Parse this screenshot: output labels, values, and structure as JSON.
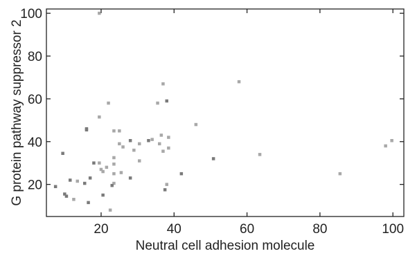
{
  "chart_data": {
    "type": "scatter",
    "xlabel": "Neutral cell adhesion molecule",
    "ylabel": "G protein pathway suppressor 2",
    "xlim": [
      5,
      103
    ],
    "ylim": [
      5,
      102
    ],
    "x_ticks": [
      20,
      40,
      60,
      80,
      100
    ],
    "y_ticks": [
      20,
      40,
      60,
      80,
      100
    ],
    "grid": false,
    "legend": "none",
    "colors": {
      "dark": "#7a7a7a",
      "light": "#a8a8a8",
      "axis": "#222222"
    },
    "points": [
      {
        "x": 19.5,
        "y": 100,
        "shade": "light"
      },
      {
        "x": 57.8,
        "y": 68,
        "shade": "light"
      },
      {
        "x": 37.0,
        "y": 67,
        "shade": "light"
      },
      {
        "x": 38.0,
        "y": 59,
        "shade": "dark"
      },
      {
        "x": 22.0,
        "y": 58,
        "shade": "light"
      },
      {
        "x": 35.5,
        "y": 58,
        "shade": "light"
      },
      {
        "x": 19.5,
        "y": 51.5,
        "shade": "light"
      },
      {
        "x": 46.0,
        "y": 48,
        "shade": "light"
      },
      {
        "x": 16.0,
        "y": 46,
        "shade": "dark"
      },
      {
        "x": 16.0,
        "y": 45.5,
        "shade": "dark"
      },
      {
        "x": 23.5,
        "y": 45,
        "shade": "light"
      },
      {
        "x": 25.0,
        "y": 45,
        "shade": "light"
      },
      {
        "x": 36.5,
        "y": 43,
        "shade": "light"
      },
      {
        "x": 38.5,
        "y": 42,
        "shade": "light"
      },
      {
        "x": 33.0,
        "y": 40.5,
        "shade": "dark"
      },
      {
        "x": 34.0,
        "y": 41,
        "shade": "light"
      },
      {
        "x": 28.0,
        "y": 40.5,
        "shade": "dark"
      },
      {
        "x": 36.0,
        "y": 39,
        "shade": "light"
      },
      {
        "x": 30.5,
        "y": 39,
        "shade": "light"
      },
      {
        "x": 25.0,
        "y": 39,
        "shade": "light"
      },
      {
        "x": 26.0,
        "y": 37.5,
        "shade": "light"
      },
      {
        "x": 38.5,
        "y": 37,
        "shade": "light"
      },
      {
        "x": 99.7,
        "y": 40.5,
        "shade": "light"
      },
      {
        "x": 98.0,
        "y": 38,
        "shade": "light"
      },
      {
        "x": 29.0,
        "y": 36,
        "shade": "light"
      },
      {
        "x": 37.0,
        "y": 35.5,
        "shade": "light"
      },
      {
        "x": 9.5,
        "y": 34.5,
        "shade": "dark"
      },
      {
        "x": 63.5,
        "y": 34,
        "shade": "light"
      },
      {
        "x": 23.5,
        "y": 32.5,
        "shade": "light"
      },
      {
        "x": 50.8,
        "y": 32,
        "shade": "dark"
      },
      {
        "x": 30.5,
        "y": 31,
        "shade": "light"
      },
      {
        "x": 18.0,
        "y": 30,
        "shade": "dark"
      },
      {
        "x": 19.5,
        "y": 30,
        "shade": "light"
      },
      {
        "x": 23.5,
        "y": 29.5,
        "shade": "light"
      },
      {
        "x": 21.5,
        "y": 28,
        "shade": "light"
      },
      {
        "x": 20.0,
        "y": 27,
        "shade": "light"
      },
      {
        "x": 20.5,
        "y": 26,
        "shade": "light"
      },
      {
        "x": 25.5,
        "y": 25.5,
        "shade": "light"
      },
      {
        "x": 23.5,
        "y": 25,
        "shade": "light"
      },
      {
        "x": 85.5,
        "y": 25,
        "shade": "light"
      },
      {
        "x": 42.0,
        "y": 25,
        "shade": "dark"
      },
      {
        "x": 17.0,
        "y": 23,
        "shade": "dark"
      },
      {
        "x": 28.0,
        "y": 23,
        "shade": "dark"
      },
      {
        "x": 11.5,
        "y": 22,
        "shade": "dark"
      },
      {
        "x": 13.5,
        "y": 21.5,
        "shade": "light"
      },
      {
        "x": 15.5,
        "y": 20.5,
        "shade": "dark"
      },
      {
        "x": 23.5,
        "y": 20.5,
        "shade": "light"
      },
      {
        "x": 23.0,
        "y": 19.5,
        "shade": "dark"
      },
      {
        "x": 38.0,
        "y": 20,
        "shade": "light"
      },
      {
        "x": 7.5,
        "y": 19,
        "shade": "dark"
      },
      {
        "x": 37.5,
        "y": 17.5,
        "shade": "dark"
      },
      {
        "x": 10.0,
        "y": 15.5,
        "shade": "dark"
      },
      {
        "x": 20.5,
        "y": 15,
        "shade": "dark"
      },
      {
        "x": 10.5,
        "y": 14.5,
        "shade": "dark"
      },
      {
        "x": 12.5,
        "y": 13,
        "shade": "light"
      },
      {
        "x": 16.5,
        "y": 11.5,
        "shade": "dark"
      },
      {
        "x": 22.5,
        "y": 8,
        "shade": "light"
      }
    ]
  }
}
